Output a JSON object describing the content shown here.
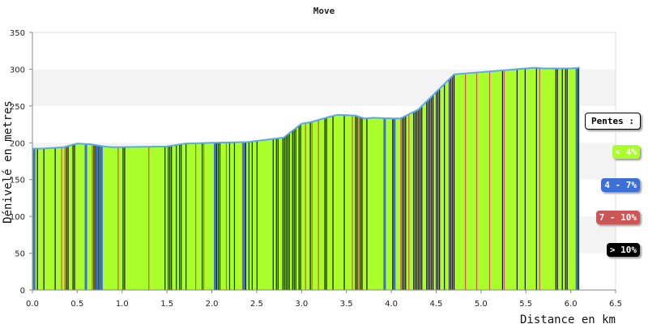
{
  "chart_data": {
    "type": "area",
    "title": "Move",
    "xlabel": "Distance en km",
    "ylabel": "Dénivelé en metres",
    "xlim": [
      0,
      6.5
    ],
    "ylim": [
      0,
      350
    ],
    "x_ticks": [
      "0.0",
      "0.5",
      "1.0",
      "1.5",
      "2.0",
      "2.5",
      "3.0",
      "3.5",
      "4.0",
      "4.5",
      "5.0",
      "5.5",
      "6.0",
      "6.5"
    ],
    "y_ticks": [
      "0",
      "50",
      "100",
      "150",
      "200",
      "250",
      "300",
      "350"
    ],
    "grid": "horizontal bands",
    "legend_placement": "right",
    "profile": {
      "x": [
        0.0,
        0.1,
        0.35,
        0.5,
        0.65,
        0.8,
        0.9,
        1.5,
        1.7,
        2.0,
        2.4,
        2.6,
        2.8,
        3.0,
        3.1,
        3.3,
        3.4,
        3.6,
        3.7,
        3.8,
        4.0,
        4.1,
        4.3,
        4.5,
        4.7,
        5.0,
        5.3,
        5.6,
        5.7,
        6.0,
        6.1
      ],
      "y": [
        192,
        192,
        194,
        199,
        198,
        195,
        194,
        195,
        199,
        200,
        201,
        204,
        207,
        226,
        228,
        235,
        238,
        237,
        233,
        234,
        233,
        233,
        245,
        269,
        293,
        296,
        299,
        302,
        301,
        301,
        302
      ]
    },
    "slope_bands": {
      "lt4": "#aaff2a",
      "4to7": "#3d6fd8",
      "7to10": "#cc5555",
      "gt10": "#111111"
    },
    "legend": {
      "title": "Pentes :",
      "items": [
        {
          "label": "< 4%",
          "color": "#aaff2a",
          "text_color": "#ffffff"
        },
        {
          "label": "4 - 7%",
          "color": "#3d6fd8",
          "text_color": "#ffffff"
        },
        {
          "label": "7 - 10%",
          "color": "#cc5555",
          "text_color": "#ffffff"
        },
        {
          "label": "> 10%",
          "color": "#000000",
          "text_color": "#ffffff"
        }
      ]
    },
    "colors": {
      "outline": "#5aa9e6",
      "band_light": "#f3f3f3",
      "band_white": "#ffffff",
      "axis": "#888888"
    }
  }
}
